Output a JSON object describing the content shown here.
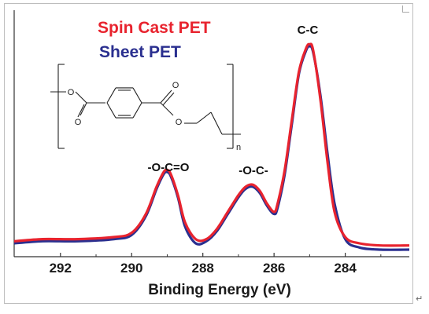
{
  "chart_data": {
    "type": "line",
    "xlabel": "Binding Energy (eV)",
    "ylabel": "",
    "xlim": [
      293.3,
      282.2
    ],
    "x_reversed": true,
    "xticks": [
      292,
      290,
      288,
      286,
      284
    ],
    "xtick_labels": [
      "292",
      "290",
      "288",
      "286",
      "284"
    ],
    "ylim": [
      0,
      1.0
    ],
    "grid": false,
    "legend_placement": "top-left",
    "series": [
      {
        "name": "Spin Cast PET",
        "color": "#e8232e",
        "x": [
          293.3,
          292.5,
          291.5,
          290.5,
          290.0,
          289.6,
          289.3,
          289.1,
          289.0,
          288.9,
          288.7,
          288.5,
          288.2,
          287.9,
          287.6,
          287.3,
          287.0,
          286.8,
          286.6,
          286.4,
          286.2,
          286.0,
          285.9,
          285.7,
          285.5,
          285.3,
          285.1,
          285.0,
          284.9,
          284.7,
          284.5,
          284.3,
          284.0,
          283.6,
          283.0,
          282.2
        ],
        "y": [
          0.04,
          0.05,
          0.05,
          0.06,
          0.08,
          0.17,
          0.3,
          0.37,
          0.38,
          0.36,
          0.26,
          0.13,
          0.05,
          0.05,
          0.1,
          0.18,
          0.26,
          0.3,
          0.31,
          0.28,
          0.22,
          0.18,
          0.22,
          0.38,
          0.62,
          0.85,
          0.96,
          0.98,
          0.95,
          0.72,
          0.42,
          0.18,
          0.06,
          0.03,
          0.02,
          0.02
        ]
      },
      {
        "name": "Sheet PET",
        "color": "#2a2f8f",
        "x": [
          293.3,
          292.5,
          291.5,
          290.5,
          290.0,
          289.6,
          289.3,
          289.1,
          289.0,
          288.9,
          288.7,
          288.5,
          288.2,
          287.9,
          287.6,
          287.3,
          287.0,
          286.8,
          286.6,
          286.4,
          286.2,
          286.0,
          285.9,
          285.7,
          285.5,
          285.3,
          285.1,
          285.0,
          284.9,
          284.7,
          284.5,
          284.3,
          284.0,
          283.6,
          283.0,
          282.2
        ],
        "y": [
          0.03,
          0.04,
          0.04,
          0.05,
          0.07,
          0.16,
          0.29,
          0.36,
          0.37,
          0.35,
          0.25,
          0.11,
          0.03,
          0.04,
          0.09,
          0.17,
          0.25,
          0.29,
          0.3,
          0.27,
          0.21,
          0.17,
          0.2,
          0.36,
          0.6,
          0.84,
          0.95,
          0.97,
          0.94,
          0.74,
          0.46,
          0.22,
          0.05,
          0.01,
          0.0,
          0.0
        ]
      }
    ],
    "legend": [
      {
        "label": "Spin Cast PET",
        "color": "#e8232e"
      },
      {
        "label": "Sheet PET",
        "color": "#2a2f8f"
      }
    ],
    "annotations": [
      {
        "text": "C-C",
        "x": 285.0,
        "y": 0.98
      },
      {
        "text": "-O-C=O",
        "x": 289.0,
        "y": 0.38
      },
      {
        "text": "-O-C-",
        "x": 286.6,
        "y": 0.31
      }
    ],
    "structure_inset": {
      "subscript": "n",
      "atom_labels": [
        "O",
        "O",
        "O",
        "O"
      ]
    }
  }
}
